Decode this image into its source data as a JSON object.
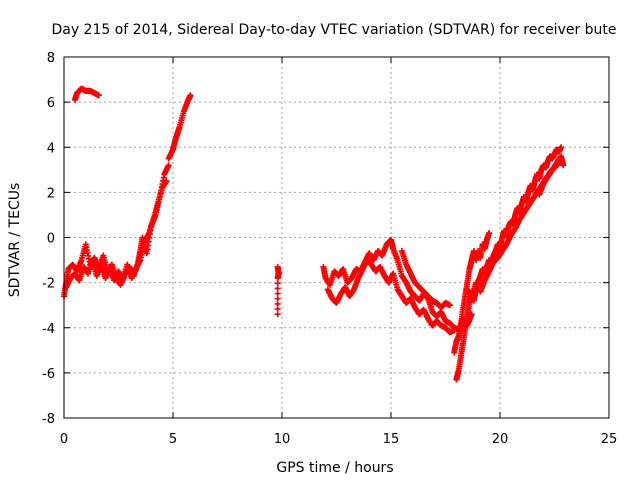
{
  "chart_data": {
    "type": "scatter",
    "title": "Day 215 of 2014, Sidereal Day-to-day VTEC variation (SDTVAR) for receiver bute",
    "xlabel": "GPS time / hours",
    "ylabel": "SDTVAR / TECUs",
    "xlim": [
      0,
      25
    ],
    "ylim": [
      -8,
      8
    ],
    "xticks": [
      0,
      5,
      10,
      15,
      20,
      25
    ],
    "yticks": [
      -8,
      -6,
      -4,
      -2,
      0,
      2,
      4,
      6,
      8
    ],
    "grid": true,
    "marker": "+",
    "series": [
      {
        "name": "SDTVAR",
        "color": "#ff0000",
        "segments": [
          [
            [
              0.0,
              -2.6
            ],
            [
              0.1,
              -2.0
            ],
            [
              0.2,
              -1.4
            ],
            [
              0.4,
              -1.2
            ],
            [
              0.6,
              -1.5
            ],
            [
              0.8,
              -1.0
            ],
            [
              1.0,
              -0.3
            ],
            [
              1.2,
              -1.2
            ],
            [
              1.4,
              -0.9
            ],
            [
              1.6,
              -1.4
            ],
            [
              1.8,
              -0.8
            ],
            [
              2.0,
              -1.5
            ],
            [
              2.2,
              -1.2
            ],
            [
              2.4,
              -1.8
            ],
            [
              2.6,
              -2.1
            ],
            [
              2.8,
              -1.6
            ],
            [
              3.0,
              -1.3
            ],
            [
              3.2,
              -1.7
            ],
            [
              3.4,
              -1.1
            ],
            [
              3.5,
              -0.6
            ],
            [
              3.6,
              0.0
            ],
            [
              3.8,
              -0.7
            ],
            [
              4.0,
              0.5
            ],
            [
              4.2,
              1.0
            ],
            [
              4.4,
              1.8
            ],
            [
              4.6,
              2.8
            ],
            [
              4.8,
              3.2
            ]
          ],
          [
            [
              0.1,
              -2.2
            ],
            [
              0.3,
              -1.8
            ],
            [
              0.5,
              -1.6
            ],
            [
              0.7,
              -1.9
            ],
            [
              0.9,
              -1.3
            ],
            [
              1.1,
              -1.6
            ],
            [
              1.3,
              -1.0
            ],
            [
              1.5,
              -1.7
            ],
            [
              1.7,
              -1.2
            ],
            [
              1.9,
              -1.8
            ],
            [
              2.1,
              -1.4
            ],
            [
              2.3,
              -1.9
            ],
            [
              2.5,
              -1.5
            ],
            [
              2.7,
              -1.9
            ],
            [
              2.9,
              -1.2
            ],
            [
              3.1,
              -1.8
            ],
            [
              3.3,
              -1.4
            ],
            [
              3.5,
              -1.0
            ],
            [
              3.7,
              -0.2
            ],
            [
              3.9,
              0.2
            ],
            [
              4.1,
              0.8
            ],
            [
              4.3,
              1.5
            ],
            [
              4.5,
              2.2
            ],
            [
              4.7,
              2.5
            ]
          ],
          [
            [
              0.5,
              6.1
            ],
            [
              0.6,
              6.4
            ],
            [
              0.8,
              6.6
            ],
            [
              1.0,
              6.5
            ],
            [
              1.2,
              6.5
            ],
            [
              1.4,
              6.4
            ],
            [
              1.6,
              6.3
            ]
          ],
          [
            [
              4.8,
              3.5
            ],
            [
              5.0,
              3.9
            ],
            [
              5.1,
              4.3
            ],
            [
              5.2,
              4.6
            ],
            [
              5.3,
              4.9
            ],
            [
              5.5,
              5.6
            ],
            [
              5.7,
              6.1
            ],
            [
              5.8,
              6.3
            ]
          ],
          [
            [
              9.8,
              -1.3
            ],
            [
              9.85,
              -1.6
            ],
            [
              9.8,
              -1.8
            ],
            [
              9.8,
              -3.4
            ]
          ],
          [
            [
              11.9,
              -1.3
            ],
            [
              12.0,
              -1.8
            ],
            [
              12.2,
              -2.1
            ],
            [
              12.4,
              -1.5
            ],
            [
              12.6,
              -1.7
            ],
            [
              12.8,
              -1.4
            ],
            [
              13.0,
              -2.0
            ],
            [
              13.2,
              -1.8
            ],
            [
              13.4,
              -1.4
            ],
            [
              13.6,
              -1.5
            ],
            [
              13.8,
              -1.1
            ],
            [
              14.0,
              -0.7
            ],
            [
              14.2,
              -1.0
            ],
            [
              14.4,
              -0.6
            ],
            [
              14.6,
              -0.8
            ],
            [
              14.8,
              -0.3
            ],
            [
              15.0,
              -0.1
            ],
            [
              15.1,
              -0.5
            ],
            [
              15.3,
              -1.0
            ],
            [
              15.5,
              -1.7
            ],
            [
              15.7,
              -2.0
            ],
            [
              15.9,
              -2.4
            ],
            [
              16.1,
              -2.6
            ],
            [
              16.3,
              -2.8
            ],
            [
              16.5,
              -2.5
            ],
            [
              16.7,
              -2.7
            ],
            [
              16.9,
              -3.3
            ],
            [
              17.1,
              -3.5
            ],
            [
              17.3,
              -3.3
            ],
            [
              17.5,
              -3.7
            ],
            [
              17.7,
              -3.8
            ],
            [
              17.9,
              -4.0
            ],
            [
              18.1,
              -4.1
            ],
            [
              18.3,
              -3.6
            ],
            [
              18.5,
              -3.9
            ],
            [
              18.7,
              -3.4
            ]
          ],
          [
            [
              12.1,
              -2.3
            ],
            [
              12.3,
              -2.7
            ],
            [
              12.5,
              -2.9
            ],
            [
              12.7,
              -2.5
            ],
            [
              12.9,
              -2.2
            ],
            [
              13.1,
              -2.6
            ],
            [
              13.3,
              -2.3
            ],
            [
              13.5,
              -1.8
            ],
            [
              13.7,
              -1.4
            ],
            [
              13.9,
              -1.0
            ],
            [
              14.1,
              -1.2
            ],
            [
              14.3,
              -1.5
            ],
            [
              14.5,
              -1.3
            ],
            [
              14.7,
              -1.7
            ],
            [
              14.9,
              -2.0
            ],
            [
              15.1,
              -1.6
            ],
            [
              15.3,
              -2.3
            ],
            [
              15.5,
              -2.6
            ],
            [
              15.7,
              -2.9
            ],
            [
              15.9,
              -2.7
            ],
            [
              16.1,
              -3.1
            ],
            [
              16.3,
              -3.4
            ],
            [
              16.5,
              -3.2
            ],
            [
              16.7,
              -3.6
            ],
            [
              16.9,
              -3.9
            ],
            [
              17.1,
              -3.7
            ],
            [
              17.3,
              -3.9
            ],
            [
              17.5,
              -4.0
            ],
            [
              17.7,
              -4.2
            ],
            [
              17.9,
              -4.1
            ]
          ],
          [
            [
              15.5,
              -0.6
            ],
            [
              15.7,
              -1.2
            ],
            [
              15.9,
              -1.6
            ],
            [
              16.1,
              -2.0
            ],
            [
              16.3,
              -2.2
            ],
            [
              16.5,
              -2.4
            ],
            [
              16.7,
              -2.6
            ],
            [
              16.9,
              -2.8
            ],
            [
              17.1,
              -2.9
            ],
            [
              17.3,
              -3.1
            ],
            [
              17.5,
              -2.9
            ],
            [
              17.7,
              -3.0
            ]
          ],
          [
            [
              17.9,
              -5.1
            ],
            [
              18.0,
              -4.6
            ],
            [
              18.1,
              -4.4
            ],
            [
              18.2,
              -3.9
            ],
            [
              18.3,
              -3.2
            ],
            [
              18.4,
              -2.6
            ],
            [
              18.5,
              -2.0
            ],
            [
              18.6,
              -1.4
            ],
            [
              18.7,
              -1.0
            ],
            [
              18.8,
              -0.6
            ],
            [
              18.9,
              -1.0
            ],
            [
              19.0,
              -0.6
            ],
            [
              19.1,
              -0.9
            ],
            [
              19.2,
              -0.3
            ],
            [
              19.3,
              -0.5
            ],
            [
              19.4,
              -0.1
            ],
            [
              19.5,
              0.2
            ]
          ],
          [
            [
              18.0,
              -6.3
            ],
            [
              18.1,
              -5.9
            ],
            [
              18.2,
              -5.3
            ],
            [
              18.3,
              -4.7
            ],
            [
              18.4,
              -4.1
            ],
            [
              18.5,
              -3.5
            ],
            [
              18.6,
              -2.9
            ],
            [
              18.7,
              -2.5
            ],
            [
              18.8,
              -2.8
            ],
            [
              18.9,
              -2.3
            ],
            [
              19.0,
              -2.0
            ],
            [
              19.1,
              -1.7
            ],
            [
              19.2,
              -1.4
            ],
            [
              19.3,
              -1.6
            ],
            [
              19.4,
              -1.3
            ],
            [
              19.5,
              -1.0
            ],
            [
              19.6,
              -1.2
            ],
            [
              19.7,
              -0.8
            ],
            [
              19.8,
              -0.6
            ],
            [
              19.9,
              -0.3
            ],
            [
              20.0,
              -0.5
            ],
            [
              20.1,
              0.0
            ],
            [
              20.2,
              0.3
            ],
            [
              20.3,
              0.1
            ],
            [
              20.4,
              0.5
            ],
            [
              20.5,
              0.7
            ],
            [
              20.6,
              0.6
            ],
            [
              20.7,
              1.0
            ],
            [
              20.8,
              1.3
            ],
            [
              20.9,
              1.1
            ],
            [
              21.0,
              1.5
            ],
            [
              21.1,
              1.8
            ],
            [
              21.2,
              1.6
            ],
            [
              21.3,
              2.0
            ],
            [
              21.4,
              2.3
            ],
            [
              21.5,
              2.1
            ],
            [
              21.6,
              2.5
            ],
            [
              21.7,
              2.8
            ],
            [
              21.8,
              2.6
            ],
            [
              21.9,
              3.0
            ],
            [
              22.0,
              3.2
            ],
            [
              22.1,
              3.1
            ],
            [
              22.2,
              3.4
            ],
            [
              22.3,
              3.6
            ],
            [
              22.4,
              3.5
            ],
            [
              22.5,
              3.7
            ],
            [
              22.6,
              3.9
            ],
            [
              22.7,
              3.8
            ],
            [
              22.8,
              4.0
            ]
          ],
          [
            [
              18.5,
              -2.3
            ],
            [
              18.7,
              -2.6
            ],
            [
              18.9,
              -2.0
            ],
            [
              19.1,
              -2.4
            ],
            [
              19.3,
              -1.9
            ],
            [
              19.5,
              -1.5
            ],
            [
              19.7,
              -1.1
            ],
            [
              19.9,
              -0.9
            ],
            [
              20.1,
              -0.6
            ],
            [
              20.3,
              -0.3
            ],
            [
              20.5,
              0.1
            ],
            [
              20.7,
              0.4
            ],
            [
              20.9,
              0.8
            ],
            [
              21.1,
              1.1
            ],
            [
              21.3,
              1.4
            ],
            [
              21.5,
              1.7
            ],
            [
              21.7,
              2.0
            ],
            [
              21.9,
              2.3
            ],
            [
              22.1,
              2.6
            ],
            [
              22.3,
              2.9
            ],
            [
              22.5,
              3.1
            ],
            [
              22.7,
              3.3
            ],
            [
              22.8,
              3.5
            ]
          ],
          [
            [
              21.8,
              1.9
            ],
            [
              22.0,
              2.4
            ],
            [
              22.2,
              2.7
            ],
            [
              22.4,
              3.0
            ],
            [
              22.6,
              3.3
            ],
            [
              22.8,
              3.6
            ],
            [
              22.9,
              3.2
            ]
          ]
        ]
      }
    ]
  }
}
